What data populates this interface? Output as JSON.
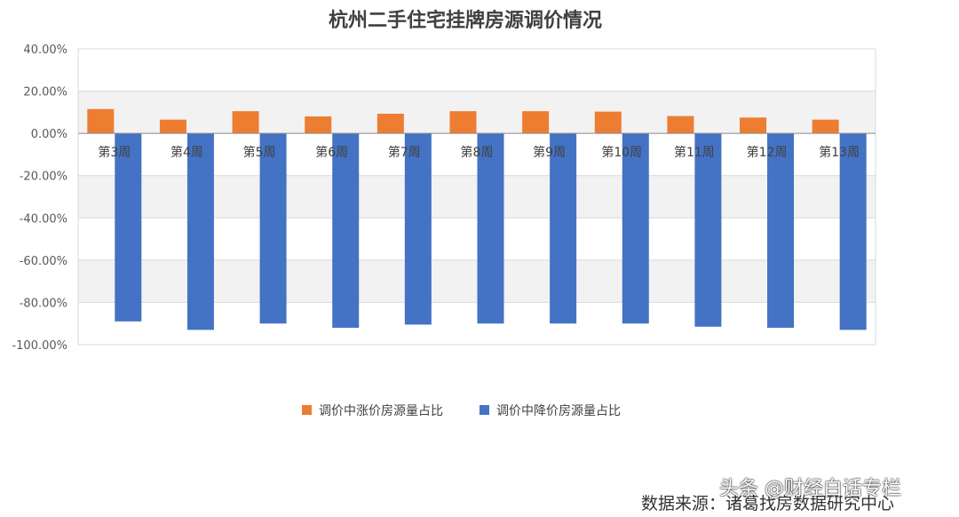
{
  "chart_data": {
    "type": "bar",
    "title": "杭州二手住宅挂牌房源调价情况",
    "categories": [
      "第3周",
      "第4周",
      "第5周",
      "第6周",
      "第7周",
      "第8周",
      "第9周",
      "第10周",
      "第11周",
      "第12周",
      "第13周"
    ],
    "series": [
      {
        "name": "调价中涨价房源量占比",
        "color": "#ED7D31",
        "values": [
          11.5,
          6.5,
          10.5,
          8.0,
          9.3,
          10.5,
          10.5,
          10.3,
          8.2,
          7.5,
          6.5
        ]
      },
      {
        "name": "调价中降价房源量占比",
        "color": "#4472C4",
        "values": [
          -89.0,
          -93.0,
          -90.0,
          -92.0,
          -90.5,
          -90.0,
          -90.0,
          -90.0,
          -91.5,
          -92.0,
          -93.0
        ]
      }
    ],
    "ylim": [
      -100,
      40
    ],
    "yticks": [
      "40.00%",
      "20.00%",
      "0.00%",
      "-20.00%",
      "-40.00%",
      "-60.00%",
      "-80.00%",
      "-100.00%"
    ],
    "ytick_values": [
      40,
      20,
      0,
      -20,
      -40,
      -60,
      -80,
      -100
    ],
    "grid": true,
    "legend_position": "bottom"
  },
  "footer": {
    "source": "数据来源：诸葛找房数据研究中心",
    "watermark": "头条 @财经白话专栏"
  }
}
